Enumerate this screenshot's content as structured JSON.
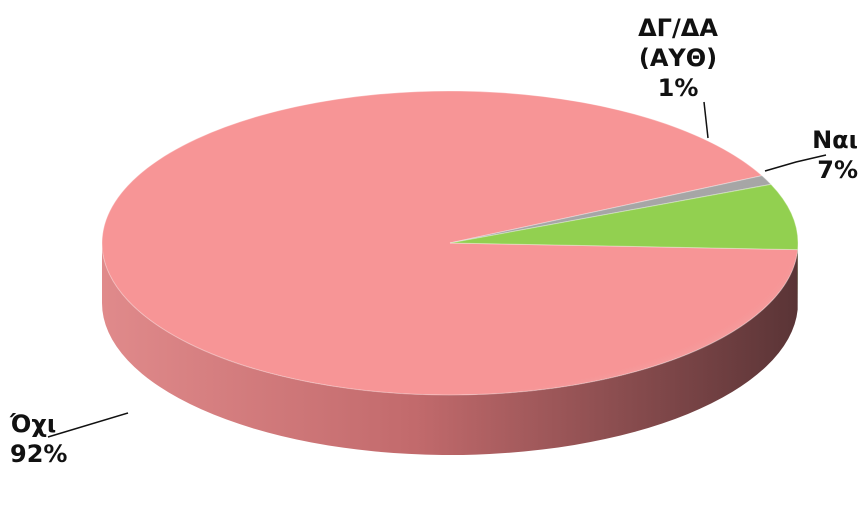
{
  "chart_data": {
    "type": "pie",
    "style": "3d",
    "categories": [
      "Όχι",
      "Ναι",
      "ΔΓ/ΔΑ (ΑΥΘ)"
    ],
    "values": [
      92,
      7,
      1
    ],
    "value_labels": [
      "92%",
      "7%",
      "1%"
    ],
    "label_lines": [
      [
        "Όχι"
      ],
      [
        "Ναι"
      ],
      [
        "ΔΓ/ΔΑ",
        "(ΑΥΘ)"
      ]
    ],
    "colors": [
      "#f79596",
      "#92d050",
      "#a6a6a6"
    ],
    "side_colors": [
      "#c9696b",
      "#4f7a2a",
      "#6e6e6e"
    ],
    "legend": "none"
  }
}
